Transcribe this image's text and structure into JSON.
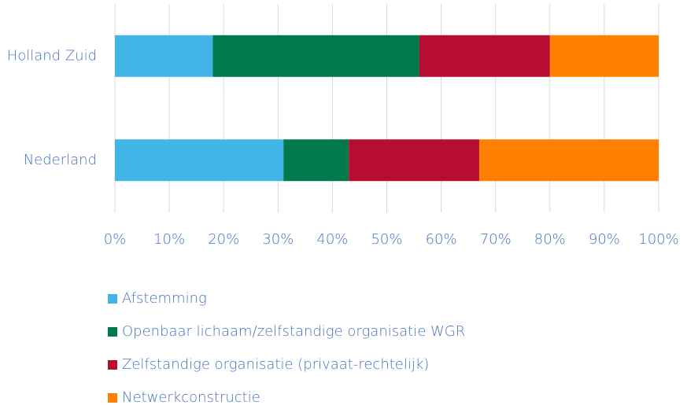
{
  "chart_data": {
    "type": "bar",
    "orientation": "horizontal",
    "stacked": true,
    "categories": [
      "Holland Zuid",
      "Nederland"
    ],
    "series": [
      {
        "name": "Afstemming",
        "color": "#41b6e6",
        "values": [
          18,
          31
        ]
      },
      {
        "name": "Openbaar lichaam/zelfstandige organisatie WGR",
        "color": "#007a4d",
        "values": [
          38,
          12
        ]
      },
      {
        "name": "Zelfstandige organisatie (privaat-rechtelijk)",
        "color": "#b70d33",
        "values": [
          24,
          24
        ]
      },
      {
        "name": "Netwerkconstructie",
        "color": "#ff8000",
        "values": [
          20,
          33
        ]
      }
    ],
    "xlim": [
      0,
      100
    ],
    "xticks": [
      {
        "value": 0,
        "label": "0%"
      },
      {
        "value": 10,
        "label": "10%"
      },
      {
        "value": 20,
        "label": "20%"
      },
      {
        "value": 30,
        "label": "30%"
      },
      {
        "value": 40,
        "label": "40%"
      },
      {
        "value": 50,
        "label": "50%"
      },
      {
        "value": 60,
        "label": "60%"
      },
      {
        "value": 70,
        "label": "70%"
      },
      {
        "value": 80,
        "label": "80%"
      },
      {
        "value": 90,
        "label": "90%"
      },
      {
        "value": 100,
        "label": "100%"
      }
    ],
    "grid": true,
    "legend": "bottom"
  }
}
